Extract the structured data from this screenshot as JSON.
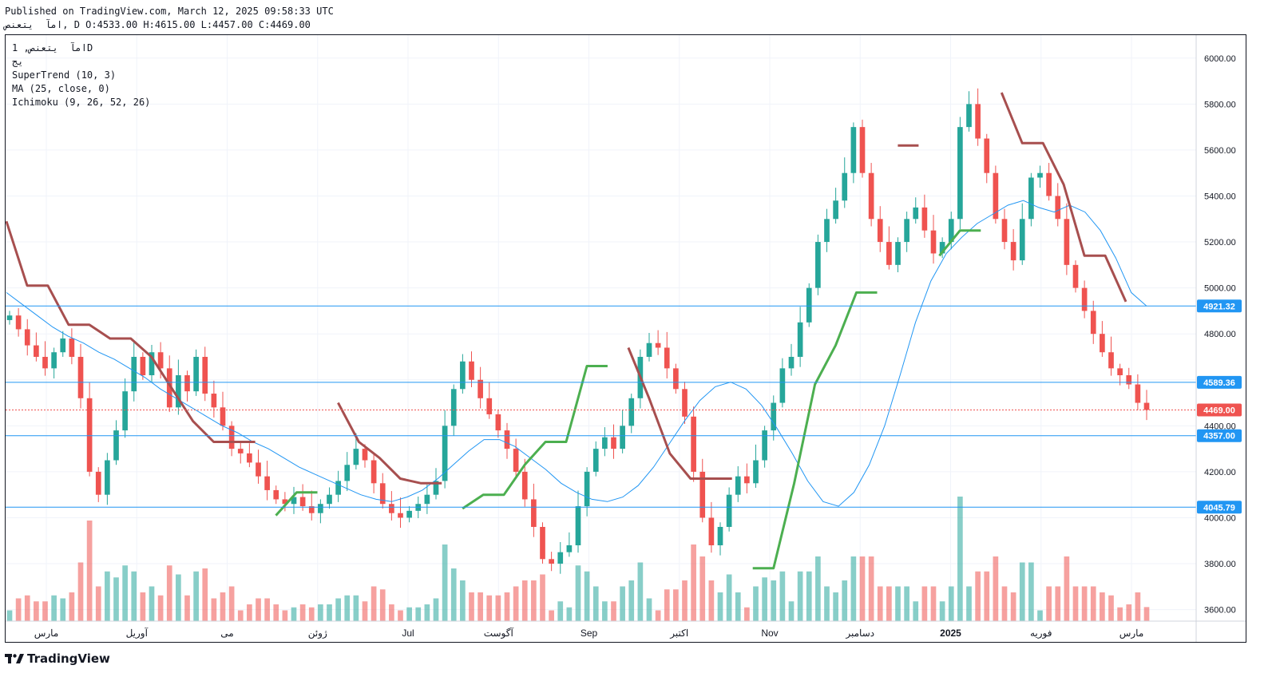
{
  "header": {
    "line1": "Published on TradingView.com, March 12, 2025 09:58:33 UTC",
    "line2": "امآ  یتعنص, D O:4533.00 H:4615.00 L:4457.00 C:4469.00"
  },
  "legend": {
    "symbol": "امآ  یتعنص, 1D",
    "exchange": "یج",
    "supertrend": "SuperTrend (10, 3)",
    "ma": "MA (25, close, 0)",
    "ichimoku": "Ichimoku (9, 26, 52, 26)"
  },
  "brand": {
    "name": "TradingView"
  },
  "colors": {
    "bull": "#26a69a",
    "bear": "#ef5350",
    "supertrend_up": "#4caf50",
    "supertrend_down": "#a74f4f",
    "ma": "#2196f3",
    "cloud_bull": "#e6f4e6",
    "cloud_bear": "#fce4e2",
    "hline": "#2196f3",
    "price_label": "#ef5350"
  },
  "chart_data": {
    "type": "candlestick",
    "interval": "1D",
    "ylim": [
      3550,
      6100
    ],
    "y_ticks": [
      3600,
      3800,
      4000,
      4200,
      4400,
      4600,
      4800,
      5000,
      5200,
      5400,
      5600,
      5800,
      6000
    ],
    "y_tick_labels": [
      "3600.00",
      "3800.00",
      "4000.00",
      "4200.00",
      "4400.00",
      "4600.00",
      "4800.00",
      "5000.00",
      "5200.00",
      "5400.00",
      "5600.00",
      "5800.00",
      "6000.00"
    ],
    "x_labels": [
      "مارس",
      "آوریل",
      "می",
      "ژوئن",
      "Jul",
      "آگوست",
      "Sep",
      "اکتبر",
      "Nov",
      "دسامبر",
      "2025",
      "فوریه",
      "مارس"
    ],
    "last_close": 4469,
    "price_labels": [
      {
        "value": 4921.32,
        "text": "4921.32"
      },
      {
        "value": 4589.36,
        "text": "4589.36"
      },
      {
        "value": 4469.0,
        "text": "4469.00"
      },
      {
        "value": 4357.0,
        "text": "4357.00"
      },
      {
        "value": 4045.79,
        "text": "4045.79"
      }
    ],
    "horizontal_lines": [
      4921.32,
      4589.36,
      4357.0,
      4045.79
    ],
    "close_path": [
      4880,
      4820,
      4750,
      4700,
      4650,
      4720,
      4780,
      4700,
      4520,
      4200,
      4100,
      4250,
      4380,
      4550,
      4700,
      4620,
      4720,
      4650,
      4480,
      4620,
      4550,
      4700,
      4540,
      4480,
      4400,
      4300,
      4280,
      4240,
      4180,
      4120,
      4080,
      4060,
      4090,
      4050,
      4020,
      4060,
      4100,
      4160,
      4230,
      4300,
      4250,
      4150,
      4060,
      4020,
      4000,
      4030,
      4060,
      4100,
      4160,
      4400,
      4560,
      4680,
      4600,
      4520,
      4450,
      4380,
      4300,
      4200,
      4080,
      3960,
      3820,
      3800,
      3850,
      3880,
      4050,
      4200,
      4300,
      4350,
      4300,
      4400,
      4520,
      4700,
      4760,
      4740,
      4650,
      4560,
      4440,
      4200,
      4000,
      3880,
      3960,
      4100,
      4180,
      4150,
      4250,
      4380,
      4500,
      4650,
      4700,
      4850,
      5000,
      5200,
      5300,
      5380,
      5500,
      5700,
      5500,
      5300,
      5200,
      5100,
      5200,
      5300,
      5350,
      5250,
      5150,
      5200,
      5300,
      5700,
      5800,
      5650,
      5500,
      5300,
      5200,
      5120,
      5300,
      5480,
      5500,
      5400,
      5300,
      5100,
      5000,
      4900,
      4800,
      4720,
      4650,
      4620,
      4580,
      4500,
      4469
    ],
    "ma25_path": [
      4980,
      4930,
      4880,
      4830,
      4790,
      4760,
      4720,
      4690,
      4650,
      4610,
      4560,
      4520,
      4480,
      4440,
      4400,
      4370,
      4330,
      4300,
      4260,
      4220,
      4190,
      4160,
      4130,
      4100,
      4080,
      4070,
      4090,
      4120,
      4170,
      4230,
      4290,
      4340,
      4340,
      4310,
      4260,
      4210,
      4150,
      4110,
      4080,
      4070,
      4090,
      4140,
      4220,
      4320,
      4420,
      4510,
      4570,
      4590,
      4560,
      4490,
      4390,
      4280,
      4160,
      4070,
      4050,
      4110,
      4230,
      4400,
      4620,
      4850,
      5030,
      5150,
      5220,
      5280,
      5320,
      5360,
      5380,
      5350,
      5330,
      5360,
      5330,
      5250,
      5130,
      4980,
      4921
    ],
    "supertrend_segments": [
      {
        "trend": "down",
        "path": [
          5290,
          5010,
          5010,
          4840,
          4840,
          4780,
          4780,
          4700,
          4560,
          4420,
          4330,
          4330,
          4330
        ]
      },
      {
        "trend": "up",
        "path": [
          4010,
          4110,
          4110
        ]
      },
      {
        "trend": "down",
        "path": [
          4500,
          4330,
          4260,
          4170,
          4150,
          4150
        ]
      },
      {
        "trend": "up",
        "path": [
          4040,
          4100,
          4100,
          4230,
          4330,
          4330,
          4660,
          4660
        ]
      },
      {
        "trend": "down",
        "path": [
          4740,
          4520,
          4280,
          4170,
          4170,
          4170
        ]
      },
      {
        "trend": "up",
        "path": [
          3780,
          3780,
          4150,
          4580,
          4750,
          4980,
          4980
        ]
      },
      {
        "trend": "down",
        "path": [
          5620,
          5620
        ]
      },
      {
        "trend": "up",
        "path": [
          5140,
          5250,
          5250
        ]
      },
      {
        "trend": "down",
        "path": [
          5850,
          5630,
          5630,
          5450,
          5140,
          5140,
          4940
        ]
      }
    ]
  }
}
